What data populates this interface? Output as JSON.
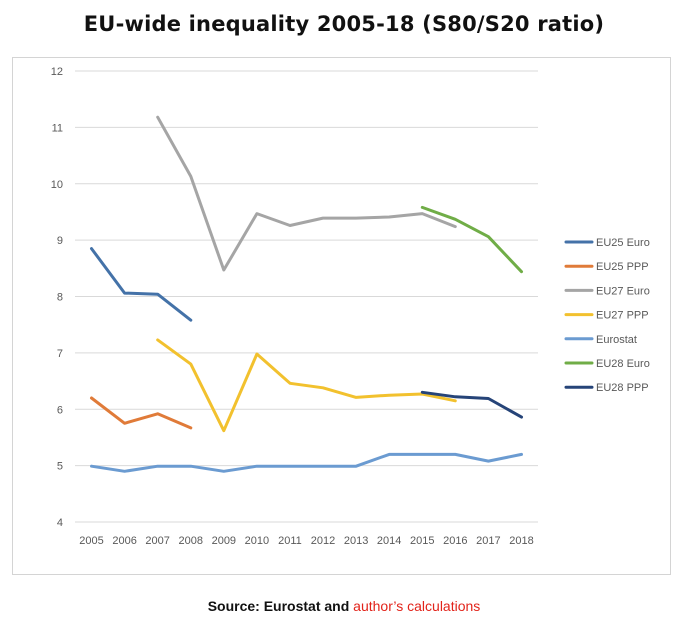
{
  "title": "EU-wide inequality 2005-18 (S80/S20 ratio)",
  "source": {
    "label": "Source: Eurostat and",
    "link_text": "author’s calculations",
    "link_color": "#e2231a"
  },
  "chart_data": {
    "type": "line",
    "title": "EU-wide inequality 2005-18 (S80/S20 ratio)",
    "x": [
      "2005",
      "2006",
      "2007",
      "2008",
      "2009",
      "2010",
      "2011",
      "2012",
      "2013",
      "2014",
      "2015",
      "2016",
      "2017",
      "2018"
    ],
    "ylim": [
      4,
      12
    ],
    "yticks": [
      4,
      5,
      6,
      7,
      8,
      9,
      10,
      11,
      12
    ],
    "grid": "horizontal",
    "legend_position": "right",
    "series": [
      {
        "name": "EU25 Euro",
        "color": "#4472a8",
        "values": [
          8.85,
          8.06,
          8.04,
          7.58,
          null,
          null,
          null,
          null,
          null,
          null,
          null,
          null,
          null,
          null
        ]
      },
      {
        "name": "EU25 PPP",
        "color": "#e07b39",
        "values": [
          6.2,
          5.75,
          5.92,
          5.67,
          null,
          null,
          null,
          null,
          null,
          null,
          null,
          null,
          null,
          null
        ]
      },
      {
        "name": "EU27 Euro",
        "color": "#a5a5a5",
        "values": [
          null,
          null,
          11.18,
          10.13,
          8.47,
          9.47,
          9.26,
          9.39,
          9.39,
          9.41,
          9.47,
          9.24,
          null,
          null
        ]
      },
      {
        "name": "EU27 PPP",
        "color": "#f2c12e",
        "values": [
          null,
          null,
          7.23,
          6.8,
          5.62,
          6.98,
          6.46,
          6.38,
          6.21,
          6.25,
          6.27,
          6.15,
          null,
          null
        ]
      },
      {
        "name": "Eurostat",
        "color": "#6b9bd1",
        "values": [
          4.99,
          4.9,
          4.99,
          4.99,
          4.9,
          4.99,
          4.99,
          4.99,
          4.99,
          5.2,
          5.2,
          5.2,
          5.08,
          5.2
        ]
      },
      {
        "name": "EU28 Euro",
        "color": "#70ad47",
        "values": [
          null,
          null,
          null,
          null,
          null,
          null,
          null,
          null,
          null,
          null,
          9.58,
          9.37,
          9.06,
          8.44
        ]
      },
      {
        "name": "EU28 PPP",
        "color": "#264478",
        "values": [
          null,
          null,
          null,
          null,
          null,
          null,
          null,
          null,
          null,
          null,
          6.3,
          6.22,
          6.19,
          5.86
        ]
      }
    ]
  }
}
